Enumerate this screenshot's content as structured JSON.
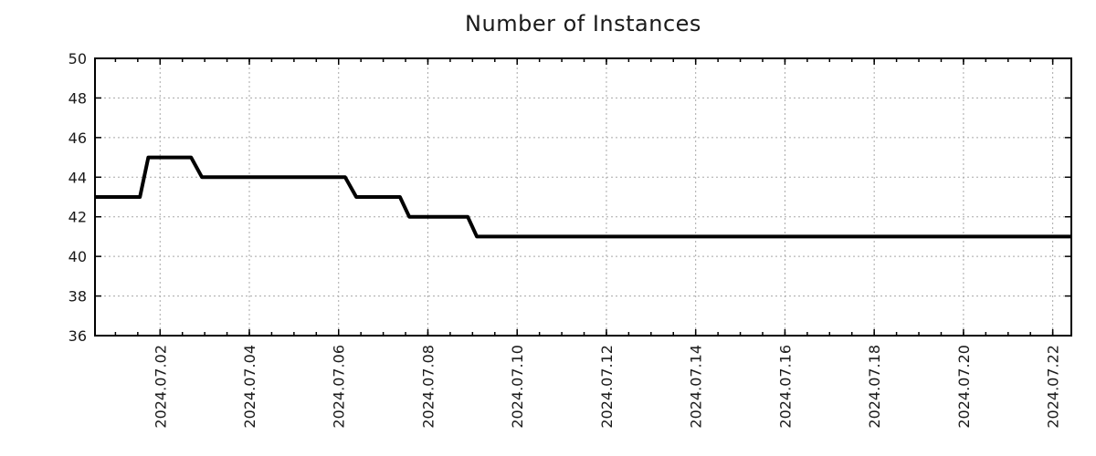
{
  "chart_data": {
    "type": "line",
    "title": "Number of Instances",
    "xlabel": "",
    "ylabel": "",
    "ylim": [
      36,
      50
    ],
    "y_ticks": [
      50,
      48,
      46,
      44,
      42,
      40,
      38,
      36
    ],
    "x_domain": [
      "2024-06-30 13:00",
      "2024-07-22 10:00"
    ],
    "x_ticks": [
      {
        "date": "2024-07-02",
        "label": "2024.07.02"
      },
      {
        "date": "2024-07-04",
        "label": "2024.07.04"
      },
      {
        "date": "2024-07-06",
        "label": "2024.07.06"
      },
      {
        "date": "2024-07-08",
        "label": "2024.07.08"
      },
      {
        "date": "2024-07-10",
        "label": "2024.07.10"
      },
      {
        "date": "2024-07-12",
        "label": "2024.07.12"
      },
      {
        "date": "2024-07-14",
        "label": "2024.07.14"
      },
      {
        "date": "2024-07-16",
        "label": "2024.07.16"
      },
      {
        "date": "2024-07-18",
        "label": "2024.07.18"
      },
      {
        "date": "2024-07-20",
        "label": "2024.07.20"
      },
      {
        "date": "2024-07-22",
        "label": "2024.07.22"
      }
    ],
    "minor_tick_interval_days": 0.5,
    "grid": "dotted",
    "legend": "none",
    "colors": {
      "line": "#000000",
      "axis": "#000000",
      "grid": "#a8a8a8",
      "text": "#1a1a1a",
      "background": "#ffffff"
    },
    "line_width": 4,
    "series": [
      {
        "name": "instances",
        "points": [
          [
            "2024-06-30 13:00",
            43
          ],
          [
            "2024-07-01 13:10",
            43
          ],
          [
            "2024-07-01 17:40",
            45
          ],
          [
            "2024-07-02 16:40",
            45
          ],
          [
            "2024-07-02 22:30",
            44
          ],
          [
            "2024-07-06 03:30",
            44
          ],
          [
            "2024-07-06 09:30",
            43
          ],
          [
            "2024-07-07 09:00",
            43
          ],
          [
            "2024-07-07 14:00",
            42
          ],
          [
            "2024-07-08 21:25",
            42
          ],
          [
            "2024-07-09 02:20",
            41
          ],
          [
            "2024-07-22 10:00",
            41
          ]
        ]
      }
    ]
  }
}
